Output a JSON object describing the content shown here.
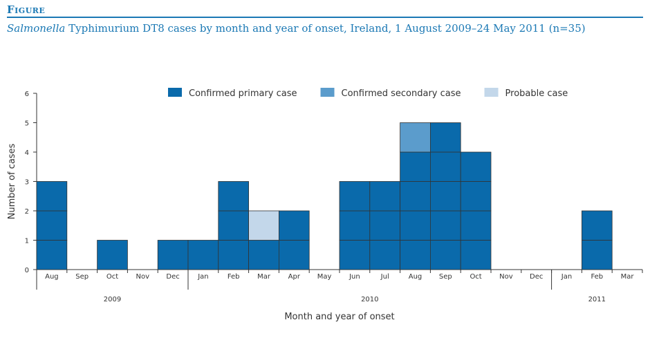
{
  "figure": {
    "label": "Figure",
    "caption_italic": "Salmonella",
    "caption_rest": " Typhimurium DT8 cases by month and year of onset, Ireland, 1 August 2009–24 May 2011 (n=35)"
  },
  "colors": {
    "accent": "#1a78b4",
    "confirmed_primary": "#0a6aab",
    "confirmed_secondary": "#5b9ccc",
    "probable": "#c3d7ea",
    "cell_border": "#333333"
  },
  "chart_data": {
    "type": "bar",
    "stacked": true,
    "unit_blocks": true,
    "xlabel": "Month and year of onset",
    "ylabel": "Number of cases",
    "ylim": [
      0,
      6
    ],
    "yticks": [
      "0",
      "1",
      "2",
      "3",
      "4",
      "5",
      "6"
    ],
    "legend_placement": "top",
    "grid": false,
    "categories": [
      "Aug",
      "Sep",
      "Oct",
      "Nov",
      "Dec",
      "Jan",
      "Feb",
      "Mar",
      "Apr",
      "May",
      "Jun",
      "Jul",
      "Aug",
      "Sep",
      "Oct",
      "Nov",
      "Dec",
      "Jan",
      "Feb",
      "Mar"
    ],
    "years": [
      {
        "label": "2009",
        "from": 0,
        "to": 4
      },
      {
        "label": "2010",
        "from": 5,
        "to": 16
      },
      {
        "label": "2011",
        "from": 17,
        "to": 19
      }
    ],
    "series": [
      {
        "name": "Confirmed primary case",
        "color_key": "confirmed_primary",
        "values": [
          3,
          0,
          1,
          0,
          1,
          1,
          3,
          1,
          2,
          0,
          3,
          3,
          4,
          5,
          4,
          0,
          0,
          0,
          2,
          0
        ]
      },
      {
        "name": "Confirmed secondary case",
        "color_key": "confirmed_secondary",
        "values": [
          0,
          0,
          0,
          0,
          0,
          0,
          0,
          0,
          0,
          0,
          0,
          0,
          1,
          0,
          0,
          0,
          0,
          0,
          0,
          0
        ]
      },
      {
        "name": "Probable case",
        "color_key": "probable",
        "values": [
          0,
          0,
          0,
          0,
          0,
          0,
          0,
          1,
          0,
          0,
          0,
          0,
          0,
          0,
          0,
          0,
          0,
          0,
          0,
          0
        ]
      }
    ]
  }
}
